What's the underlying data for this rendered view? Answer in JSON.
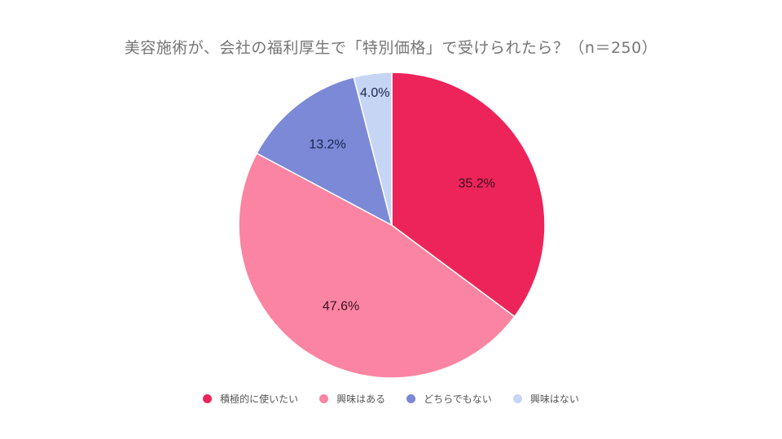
{
  "title": "美容施術が、会社の福利厚生で「特別価格」で受けられたら？（n＝250）",
  "chart_data": {
    "type": "pie",
    "title": "美容施術が、会社の福利厚生で「特別価格」で受けられたら？（n＝250）",
    "categories": [
      "積極的に使いたい",
      "興味はある",
      "どちらでもない",
      "興味はない"
    ],
    "values": [
      35.2,
      47.6,
      13.2,
      4.0
    ],
    "labels": [
      "35.2%",
      "47.6%",
      "13.2%",
      "4.0%"
    ],
    "colors": [
      "#ec245a",
      "#fb84a2",
      "#7b89d6",
      "#c5d5f3"
    ],
    "start_angle": "12 o'clock, clockwise",
    "legend_position": "bottom"
  },
  "legend": [
    {
      "label": "積極的に使いたい",
      "color": "#ec245a"
    },
    {
      "label": "興味はある",
      "color": "#fb84a2"
    },
    {
      "label": "どちらでもない",
      "color": "#7b89d6"
    },
    {
      "label": "興味はない",
      "color": "#c5d5f3"
    }
  ]
}
